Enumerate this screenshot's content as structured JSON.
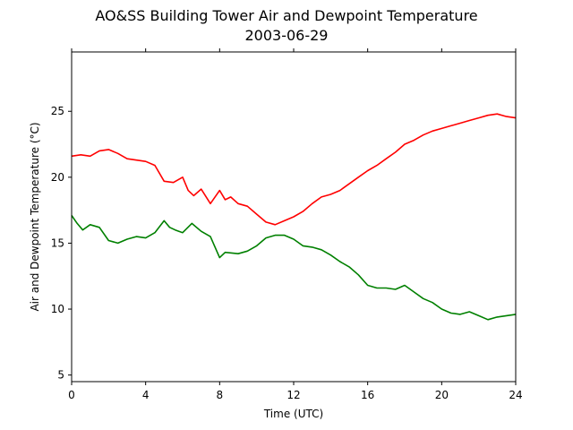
{
  "chart_data": {
    "type": "line",
    "title": "AO&SS Building Tower Air and Dewpoint Temperature",
    "subtitle": "2003-06-29",
    "xlabel": "Time (UTC)",
    "ylabel": "Air and Dewpoint Temperature (°C)",
    "xlim": [
      0,
      24
    ],
    "ylim": [
      4.5,
      29.5
    ],
    "xticks": [
      0,
      4,
      8,
      12,
      16,
      20,
      24
    ],
    "yticks": [
      5,
      10,
      15,
      20,
      25
    ],
    "grid": false,
    "legend": "none",
    "series": [
      {
        "color": "#ff0000",
        "x": [
          0,
          0.5,
          1,
          1.5,
          2,
          2.5,
          3,
          3.5,
          4,
          4.5,
          5,
          5.5,
          6,
          6.3,
          6.6,
          7,
          7.5,
          8,
          8.3,
          8.6,
          9,
          9.5,
          10,
          10.5,
          11,
          11.5,
          12,
          12.5,
          13,
          13.5,
          14,
          14.5,
          15,
          15.5,
          16,
          16.5,
          17,
          17.5,
          18,
          18.5,
          19,
          19.5,
          20,
          20.5,
          21,
          21.5,
          22,
          22.5,
          23,
          23.5,
          24
        ],
        "y": [
          21.6,
          21.7,
          21.6,
          22.0,
          22.1,
          21.8,
          21.4,
          21.3,
          21.2,
          20.9,
          19.7,
          19.6,
          20.0,
          19.0,
          18.6,
          19.1,
          18.0,
          19.0,
          18.3,
          18.5,
          18.0,
          17.8,
          17.2,
          16.6,
          16.4,
          16.7,
          17.0,
          17.4,
          18.0,
          18.5,
          18.7,
          19.0,
          19.5,
          20.0,
          20.5,
          20.9,
          21.4,
          21.9,
          22.5,
          22.8,
          23.2,
          23.5,
          23.7,
          23.9,
          24.1,
          24.3,
          24.5,
          24.7,
          24.8,
          24.6,
          24.5
        ]
      },
      {
        "color": "#008000",
        "x": [
          0,
          0.3,
          0.6,
          1,
          1.5,
          2,
          2.5,
          3,
          3.5,
          4,
          4.5,
          5,
          5.3,
          5.6,
          6,
          6.5,
          7,
          7.5,
          8,
          8.3,
          9,
          9.5,
          10,
          10.5,
          11,
          11.5,
          12,
          12.5,
          13,
          13.5,
          14,
          14.5,
          15,
          15.5,
          16,
          16.5,
          17,
          17.5,
          18,
          18.5,
          19,
          19.5,
          20,
          20.5,
          21,
          21.5,
          22,
          22.5,
          23,
          23.5,
          24
        ],
        "y": [
          17.1,
          16.5,
          16.0,
          16.4,
          16.2,
          15.2,
          15.0,
          15.3,
          15.5,
          15.4,
          15.8,
          16.7,
          16.2,
          16.0,
          15.8,
          16.5,
          15.9,
          15.5,
          13.9,
          14.3,
          14.2,
          14.4,
          14.8,
          15.4,
          15.6,
          15.6,
          15.3,
          14.8,
          14.7,
          14.5,
          14.1,
          13.6,
          13.2,
          12.6,
          11.8,
          11.6,
          11.6,
          11.5,
          11.8,
          11.3,
          10.8,
          10.5,
          10.0,
          9.7,
          9.6,
          9.8,
          9.5,
          9.2,
          9.4,
          9.5,
          9.6
        ]
      }
    ]
  }
}
